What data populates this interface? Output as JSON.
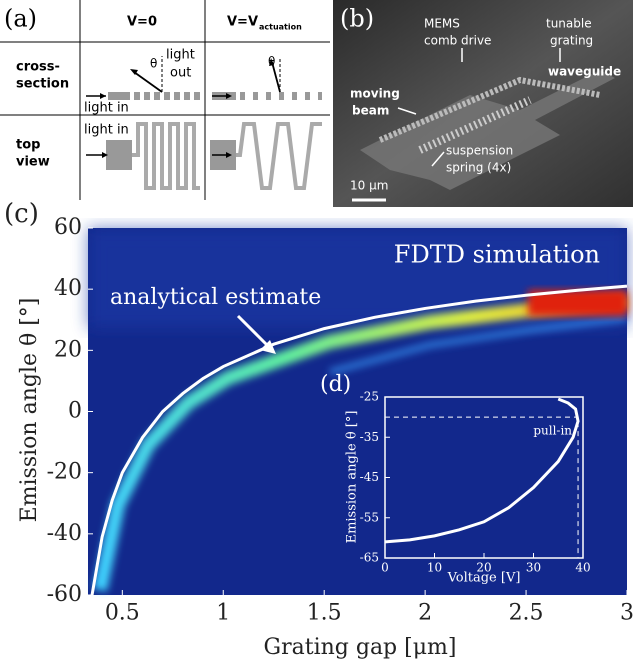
{
  "panel_a": {
    "label": "(a)",
    "col1_header": "V=0",
    "col2_header": "V=V",
    "col2_header_sub": "actuation",
    "row1_label": [
      "cross-",
      "section"
    ],
    "row2_label": [
      "top",
      "view"
    ],
    "light_in": "light in",
    "light_out": [
      "light",
      "out"
    ],
    "theta": "θ"
  },
  "panel_b": {
    "label": "(b)",
    "comb_drive": [
      "MEMS",
      "comb drive"
    ],
    "grating": [
      "tunable",
      "grating"
    ],
    "waveguide": "waveguide",
    "beam": [
      "moving",
      "beam"
    ],
    "spring": [
      "suspension",
      "spring (4x)"
    ],
    "scale_bar": "10 μm"
  },
  "chart_data": [
    {
      "type": "line",
      "label": "(c)",
      "xlabel": "Grating gap [μm]",
      "ylabel": "Emission angle θ [°]",
      "xlim": [
        0.33,
        3
      ],
      "ylim": [
        -60,
        60
      ],
      "xticks": [
        0.5,
        1,
        1.5,
        2,
        2.5,
        3
      ],
      "yticks": [
        -60,
        -40,
        -20,
        0,
        20,
        40,
        60
      ],
      "x": [
        0.35,
        0.4,
        0.45,
        0.5,
        0.6,
        0.7,
        0.8,
        0.9,
        1,
        1.25,
        1.5,
        1.75,
        2,
        2.25,
        2.5,
        2.75,
        3
      ],
      "series": [
        {
          "name": "analytical estimate",
          "color": "#ffffff",
          "values": [
            -60,
            -41,
            -29,
            -20,
            -8.5,
            0,
            5.9,
            10.8,
            14.7,
            22,
            27.1,
            30.8,
            33.7,
            36.1,
            38,
            39.6,
            41
          ]
        }
      ],
      "annotations": [
        "FDTD simulation"
      ]
    },
    {
      "type": "line",
      "label": "(d)",
      "xlabel": "Voltage [V]",
      "ylabel": "Emission angle θ [°]",
      "xlim": [
        0,
        40
      ],
      "ylim": [
        -65,
        -25
      ],
      "xticks": [
        0,
        10,
        20,
        30,
        40
      ],
      "yticks": [
        -65,
        -55,
        -45,
        -35,
        -25
      ],
      "x": [
        0,
        5,
        10,
        15,
        20,
        25,
        30,
        35,
        38,
        39,
        38.5,
        37,
        35
      ],
      "series": [
        {
          "color": "#ffffff",
          "values": [
            -61,
            -60.5,
            -59.5,
            -58,
            -56,
            -52.5,
            -47.5,
            -41,
            -35,
            -31,
            -28,
            -26.5,
            -25.5
          ]
        }
      ],
      "annotations": [
        "pull-in"
      ],
      "pull_in": [
        39,
        -30
      ]
    }
  ]
}
